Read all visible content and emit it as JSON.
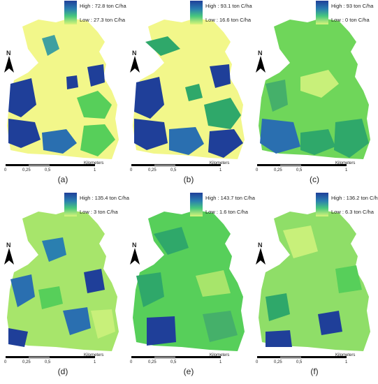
{
  "panels": [
    {
      "label": "(a)",
      "legend_high": "High : 72.8 ton C/ha",
      "legend_low": "Low : 27.3 ton C/ha"
    },
    {
      "label": "(b)",
      "legend_high": "High : 93.1 ton C/ha",
      "legend_low": "Low : 16.6 ton C/ha"
    },
    {
      "label": "(c)",
      "legend_high": "High : 93 ton C/ha",
      "legend_low": "Low : 0 ton C/ha"
    },
    {
      "label": "(d)",
      "legend_high": "High : 135.4 ton C/ha",
      "legend_low": "Low : 3 ton C/ha"
    },
    {
      "label": "(e)",
      "legend_high": "High : 143.7 ton C/ha",
      "legend_low": "Low : 1.6 ton C/ha"
    },
    {
      "label": "(f)",
      "legend_high": "High : 136.2 ton C/ha",
      "legend_low": "Low : 6.3 ton C/ha"
    }
  ],
  "north_label": "N",
  "scale": {
    "units": "Kilometers",
    "ticks": [
      "0",
      "0,25",
      "0,5",
      "1"
    ]
  },
  "colors": {
    "high": "#1f3f99",
    "mid": "#2fa86a",
    "low": "#eaf78f",
    "yellow": "#f2f78a",
    "green": "#57cf5a"
  }
}
